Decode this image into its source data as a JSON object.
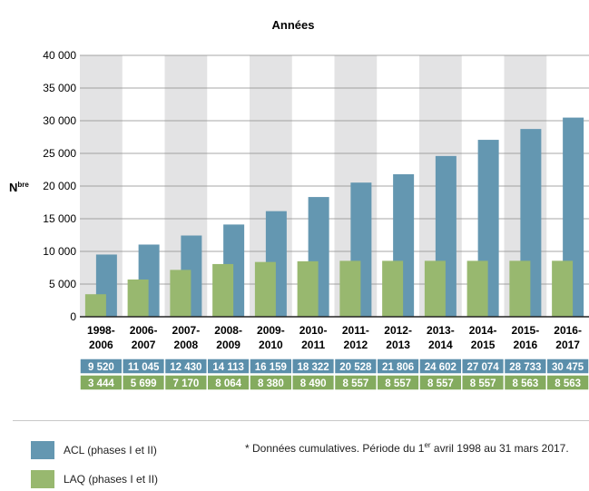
{
  "chart_data": {
    "type": "bar",
    "title": "Années",
    "ylabel_main": "N",
    "ylabel_sup": "bre",
    "ylim": [
      0,
      40000
    ],
    "yticks": [
      0,
      5000,
      10000,
      15000,
      20000,
      25000,
      30000,
      35000,
      40000
    ],
    "ytick_labels": [
      "0",
      "5 000",
      "10 000",
      "15 000",
      "20 000",
      "25 000",
      "30 000",
      "35 000",
      "40 000"
    ],
    "categories": [
      [
        "1998-",
        "2006"
      ],
      [
        "2006-",
        "2007"
      ],
      [
        "2007-",
        "2008"
      ],
      [
        "2008-",
        "2009"
      ],
      [
        "2009-",
        "2010"
      ],
      [
        "2010-",
        "2011"
      ],
      [
        "2011-",
        "2012"
      ],
      [
        "2012-",
        "2013"
      ],
      [
        "2013-",
        "2014"
      ],
      [
        "2014-",
        "2015"
      ],
      [
        "2015-",
        "2016"
      ],
      [
        "2016-",
        "2017"
      ]
    ],
    "series": [
      {
        "name": "ACL (phases I et II)",
        "color": "#6497b1",
        "values": [
          9520,
          11045,
          12430,
          14113,
          16159,
          18322,
          20528,
          21806,
          24602,
          27074,
          28733,
          30475
        ],
        "labels": [
          "9 520",
          "11 045",
          "12 430",
          "14 113",
          "16 159",
          "18 322",
          "20 528",
          "21 806",
          "24 602",
          "27 074",
          "28 733",
          "30 475"
        ]
      },
      {
        "name": "LAQ (phases I et II)",
        "color": "#98b86f",
        "values": [
          3444,
          5699,
          7170,
          8064,
          8380,
          8490,
          8557,
          8557,
          8557,
          8557,
          8563,
          8563
        ],
        "labels": [
          "3 444",
          "5 699",
          "7 170",
          "8 064",
          "8 380",
          "8 490",
          "8 557",
          "8 557",
          "8 557",
          "8 557",
          "8 563",
          "8 563"
        ]
      }
    ],
    "grid": true,
    "legend_position": "bottom-left"
  },
  "note": {
    "pre": "* Données cumulatives. Période du 1",
    "sup": "er",
    "post": " avril 1998 au 31 mars 2017."
  },
  "colors": {
    "band": "#e3e3e4",
    "acl": "#6497b1",
    "laq": "#98b86f",
    "table_acl": "#5b8fab",
    "table_laq": "#84ab5f"
  }
}
